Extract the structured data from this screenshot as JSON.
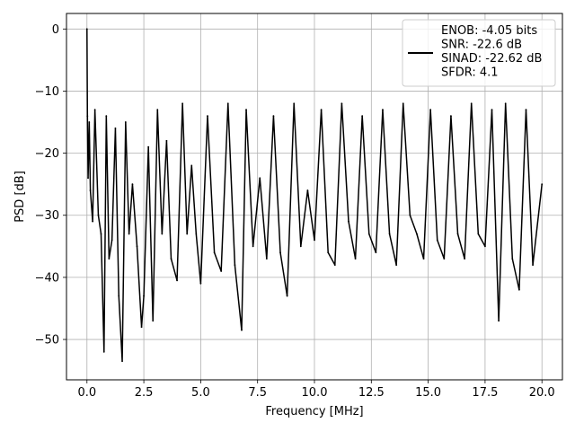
{
  "chart_data": {
    "type": "line",
    "xlabel": "Frequency [MHz]",
    "ylabel": "PSD [dB]",
    "xlim": [
      -0.9,
      20.9
    ],
    "ylim": [
      -56.5,
      2.5
    ],
    "xticks": [
      0.0,
      2.5,
      5.0,
      7.5,
      10.0,
      12.5,
      15.0,
      17.5,
      20.0
    ],
    "xtick_labels": [
      "0.0",
      "2.5",
      "5.0",
      "7.5",
      "10.0",
      "12.5",
      "15.0",
      "17.5",
      "20.0"
    ],
    "yticks": [
      0,
      -10,
      -20,
      -30,
      -40,
      -50
    ],
    "ytick_labels": [
      "0",
      "−10",
      "−20",
      "−30",
      "−40",
      "−50"
    ],
    "grid": true,
    "legend_position": "top-right",
    "line_color": "#000000",
    "legend": {
      "lines": [
        "ENOB: -4.05 bits",
        "SNR: -22.6 dB",
        "SINAD: -22.62 dB",
        "SFDR: 4.1"
      ]
    },
    "series": [
      {
        "color": "#000000",
        "x": [
          0.0,
          0.02,
          0.05,
          0.1,
          0.15,
          0.25,
          0.35,
          0.5,
          0.62,
          0.75,
          0.85,
          0.97,
          1.1,
          1.25,
          1.4,
          1.55,
          1.7,
          1.85,
          2.0,
          2.2,
          2.4,
          2.5,
          2.7,
          2.9,
          3.1,
          3.3,
          3.5,
          3.7,
          3.96,
          4.2,
          4.4,
          4.6,
          4.8,
          5.0,
          5.3,
          5.6,
          5.9,
          6.2,
          6.5,
          6.8,
          7.0,
          7.3,
          7.6,
          7.9,
          8.2,
          8.5,
          8.8,
          9.1,
          9.4,
          9.7,
          10.0,
          10.3,
          10.6,
          10.9,
          11.2,
          11.5,
          11.8,
          12.1,
          12.4,
          12.7,
          13.0,
          13.3,
          13.6,
          13.9,
          14.2,
          14.5,
          14.8,
          15.1,
          15.4,
          15.7,
          16.0,
          16.3,
          16.6,
          16.9,
          17.2,
          17.5,
          17.8,
          18.1,
          18.4,
          18.7,
          19.0,
          19.3,
          19.6,
          20.0
        ],
        "y": [
          0.0,
          -14.0,
          -24.0,
          -15.0,
          -26.0,
          -31.0,
          -13.0,
          -30.0,
          -33.0,
          -52.0,
          -14.0,
          -37.0,
          -34.0,
          -16.0,
          -43.0,
          -53.5,
          -15.0,
          -33.0,
          -25.0,
          -35.0,
          -48.0,
          -43.0,
          -19.0,
          -47.0,
          -13.0,
          -33.0,
          -18.0,
          -37.0,
          -40.5,
          -12.0,
          -33.0,
          -22.0,
          -33.0,
          -41.0,
          -14.0,
          -36.0,
          -39.0,
          -12.0,
          -38.0,
          -48.5,
          -13.0,
          -35.0,
          -24.0,
          -37.0,
          -14.0,
          -36.0,
          -43.0,
          -12.0,
          -35.0,
          -26.0,
          -34.0,
          -13.0,
          -36.0,
          -38.0,
          -12.0,
          -31.0,
          -37.0,
          -14.0,
          -33.0,
          -36.0,
          -13.0,
          -33.0,
          -38.0,
          -12.0,
          -30.0,
          -33.0,
          -37.0,
          -13.0,
          -34.0,
          -37.0,
          -14.0,
          -33.0,
          -37.0,
          -12.0,
          -33.0,
          -35.0,
          -13.0,
          -47.0,
          -12.0,
          -37.0,
          -42.0,
          -13.0,
          -38.0,
          -25.0
        ]
      }
    ]
  }
}
